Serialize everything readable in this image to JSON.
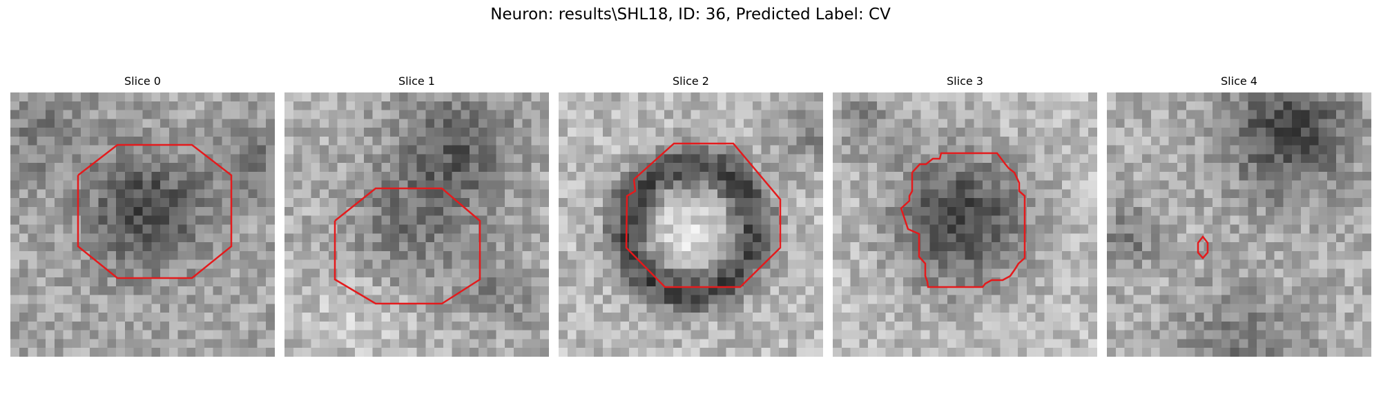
{
  "figure": {
    "title": "Neuron: results\\SHL18, ID: 36, Predicted Label: CV",
    "contour_color": "#e41a1c",
    "colormap": "grayscale",
    "axes_visible": false
  },
  "panels": [
    {
      "title": "Slice 0",
      "contour": "octagon",
      "texture": "bright-rim, dark-center"
    },
    {
      "title": "Slice 1",
      "contour": "octagon",
      "texture": "dark-band top, mid-gray center"
    },
    {
      "title": "Slice 2",
      "contour": "octagon",
      "texture": "dark ring around bright center"
    },
    {
      "title": "Slice 3",
      "contour": "irregular-blob",
      "texture": "dark blob center, bright surround"
    },
    {
      "title": "Slice 4",
      "contour": "tiny-hexagon",
      "texture": "dark top-right, dark bottom band"
    }
  ]
}
